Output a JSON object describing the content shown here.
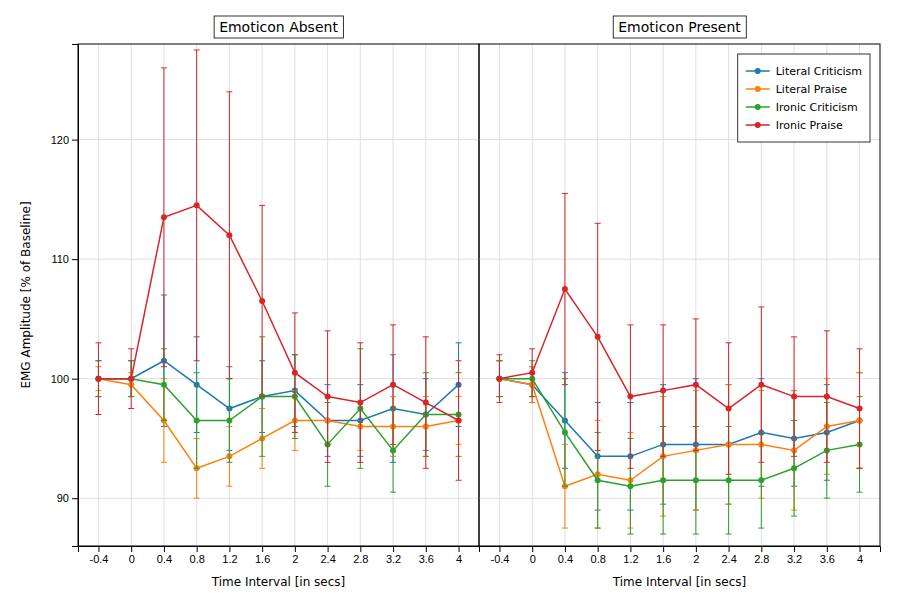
{
  "chart_data": [
    {
      "type": "line",
      "title": "Emoticon Absent",
      "xlabel": "Time Interval [in secs]",
      "ylabel": "EMG Amplitude [% of Baseline]",
      "x": [
        -0.4,
        0,
        0.4,
        0.8,
        1.2,
        1.6,
        2,
        2.4,
        2.8,
        3.2,
        3.6,
        4
      ],
      "xlim": [
        -0.65,
        4.25
      ],
      "xticks": [
        -0.4,
        0,
        0.4,
        0.8,
        1.2,
        1.6,
        2,
        2.4,
        2.8,
        3.2,
        3.6,
        4
      ],
      "ylim": [
        86,
        128
      ],
      "yticks": [
        90,
        100,
        110,
        120
      ],
      "grid": true,
      "marker": "circle",
      "series": [
        {
          "name": "Literal Criticism",
          "values": [
            100,
            100,
            101.5,
            99.5,
            97.5,
            98.5,
            99.0,
            96.5,
            96.5,
            97.5,
            97.0,
            99.5
          ],
          "errors": [
            1.5,
            1.5,
            5.5,
            4.0,
            3.5,
            3.0,
            3.0,
            3.0,
            3.0,
            4.5,
            3.0,
            3.5
          ]
        },
        {
          "name": "Literal Praise",
          "values": [
            100,
            99.5,
            96.5,
            92.5,
            93.5,
            95.0,
            96.5,
            96.5,
            96.0,
            96.0,
            96.0,
            96.5
          ],
          "errors": [
            1.0,
            1.0,
            3.5,
            2.5,
            2.5,
            2.5,
            2.5,
            2.0,
            2.0,
            2.5,
            2.5,
            2.0
          ]
        },
        {
          "name": "Ironic Criticism",
          "values": [
            100,
            100,
            99.5,
            96.5,
            96.5,
            98.5,
            98.5,
            94.5,
            97.5,
            94.0,
            97.0,
            97.0
          ],
          "errors": [
            1.5,
            1.5,
            3.0,
            4.0,
            3.5,
            5.0,
            3.5,
            3.5,
            5.0,
            3.5,
            3.5,
            3.5
          ]
        },
        {
          "name": "Ironic Praise",
          "values": [
            100,
            100,
            113.5,
            114.5,
            112.0,
            106.5,
            100.5,
            98.5,
            98.0,
            99.5,
            98.0,
            96.5
          ],
          "errors": [
            3.0,
            2.5,
            12.5,
            13.0,
            12.0,
            8.0,
            5.0,
            5.5,
            5.0,
            5.0,
            5.5,
            5.0
          ]
        }
      ]
    },
    {
      "type": "line",
      "title": "Emoticon Present",
      "xlabel": "Time Interval [in secs]",
      "x": [
        -0.4,
        0,
        0.4,
        0.8,
        1.2,
        1.6,
        2,
        2.4,
        2.8,
        3.2,
        3.6,
        4
      ],
      "xlim": [
        -0.65,
        4.25
      ],
      "xticks": [
        -0.4,
        0,
        0.4,
        0.8,
        1.2,
        1.6,
        2,
        2.4,
        2.8,
        3.2,
        3.6,
        4
      ],
      "ylim": [
        86,
        128
      ],
      "yticks": [
        90,
        100,
        110,
        120
      ],
      "grid": true,
      "marker": "circle",
      "tick_labels": "x",
      "legend": "upper right",
      "series": [
        {
          "name": "Literal Criticism",
          "values": [
            100,
            99.5,
            96.5,
            93.5,
            93.5,
            94.5,
            94.5,
            94.5,
            95.5,
            95.0,
            95.5,
            96.5
          ],
          "errors": [
            1.5,
            1.5,
            4.0,
            4.5,
            4.5,
            5.0,
            5.5,
            5.0,
            4.5,
            4.0,
            4.0,
            4.0
          ]
        },
        {
          "name": "Literal Praise",
          "values": [
            100,
            99.5,
            91.0,
            92.0,
            91.5,
            93.5,
            94.0,
            94.5,
            94.5,
            94.0,
            96.0,
            96.5
          ],
          "errors": [
            1.5,
            1.5,
            3.5,
            4.5,
            4.0,
            5.0,
            5.0,
            5.0,
            4.5,
            5.0,
            4.0,
            4.0
          ]
        },
        {
          "name": "Ironic Criticism",
          "values": [
            100,
            100,
            95.5,
            91.5,
            91.0,
            91.5,
            91.5,
            91.5,
            91.5,
            92.5,
            94.0,
            94.5
          ],
          "errors": [
            1.5,
            1.5,
            4.5,
            4.0,
            4.0,
            4.5,
            4.5,
            4.5,
            4.0,
            4.0,
            4.0,
            4.0
          ]
        },
        {
          "name": "Ironic Praise",
          "values": [
            100,
            100.5,
            107.5,
            103.5,
            98.5,
            99.0,
            99.5,
            97.5,
            99.5,
            98.5,
            98.5,
            97.5
          ],
          "errors": [
            2.0,
            2.0,
            8.0,
            9.5,
            6.0,
            5.5,
            5.5,
            5.5,
            6.5,
            5.0,
            5.5,
            5.0
          ]
        }
      ]
    }
  ]
}
